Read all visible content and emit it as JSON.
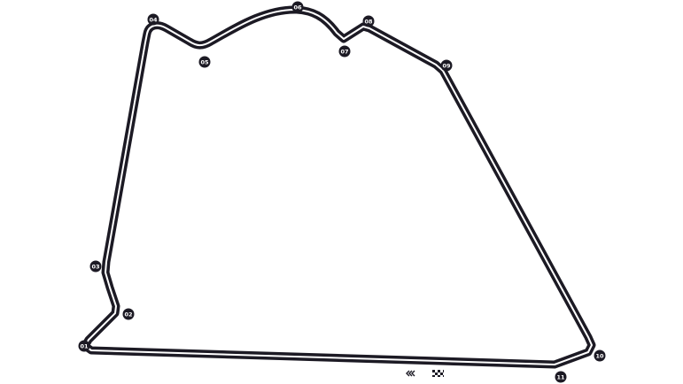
{
  "circuit": {
    "colors": {
      "track": "#1c1a24",
      "track_center_line": "#ffffff",
      "marker_fill": "#1c1a24",
      "marker_text": "#ffffff",
      "background": "#ffffff"
    },
    "turns": [
      {
        "id": "01",
        "label": "01"
      },
      {
        "id": "02",
        "label": "02"
      },
      {
        "id": "03",
        "label": "03"
      },
      {
        "id": "04",
        "label": "04"
      },
      {
        "id": "05",
        "label": "05"
      },
      {
        "id": "06",
        "label": "06"
      },
      {
        "id": "07",
        "label": "07"
      },
      {
        "id": "08",
        "label": "08"
      },
      {
        "id": "09",
        "label": "09"
      },
      {
        "id": "10",
        "label": "10"
      },
      {
        "id": "11",
        "label": "11"
      }
    ],
    "icons": {
      "direction": "direction-chevrons-icon",
      "finish": "checkered-flag-icon"
    },
    "direction_glyph": "«"
  }
}
